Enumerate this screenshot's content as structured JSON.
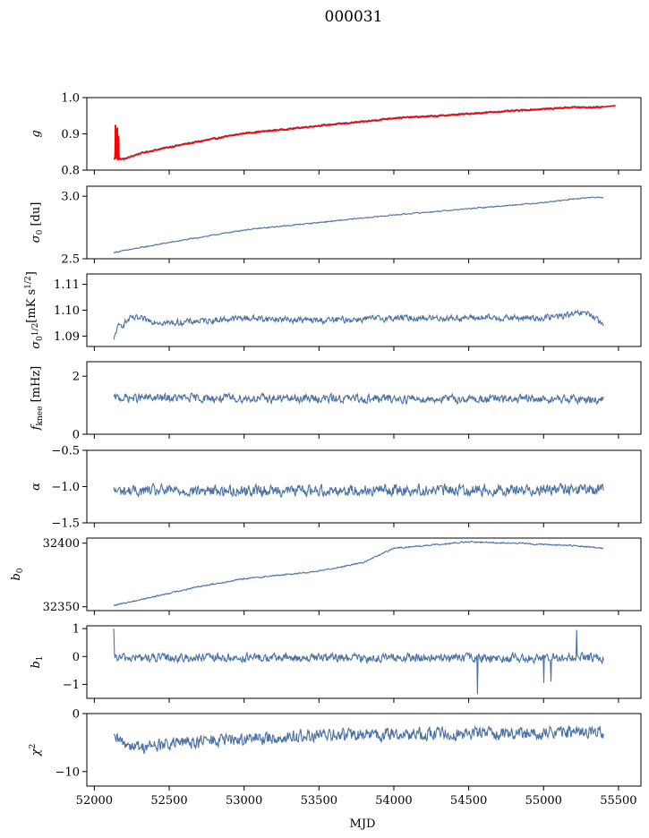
{
  "figure": {
    "title": "000031",
    "xlabel": "MJD"
  },
  "chart_data": {
    "type": "line",
    "title": "000031",
    "xlabel": "MJD",
    "xlim": [
      51950,
      55650
    ],
    "xticks": [
      52000,
      52500,
      53000,
      53500,
      54000,
      54500,
      55000,
      55500
    ],
    "x_start": 52130,
    "x_end": 55400,
    "grid": false,
    "series_color": "#4c72a3",
    "highlight_color": "#ff0000",
    "panels": [
      {
        "id": "g",
        "ylabel": "g",
        "ylim": [
          0.8,
          1.0
        ],
        "yticks": [
          0.8,
          0.9,
          1.0
        ],
        "ytick_labels": [
          "0.8",
          "0.9",
          "1.0"
        ],
        "trend": [
          [
            52130,
            0.833
          ],
          [
            52200,
            0.832
          ],
          [
            52300,
            0.847
          ],
          [
            52500,
            0.865
          ],
          [
            52800,
            0.888
          ],
          [
            53000,
            0.903
          ],
          [
            53300,
            0.915
          ],
          [
            53500,
            0.924
          ],
          [
            53800,
            0.935
          ],
          [
            54000,
            0.945
          ],
          [
            54300,
            0.951
          ],
          [
            54500,
            0.957
          ],
          [
            54800,
            0.965
          ],
          [
            55000,
            0.97
          ],
          [
            55200,
            0.975
          ],
          [
            55300,
            0.974
          ],
          [
            55480,
            0.978
          ]
        ],
        "noise": 0.0015,
        "red_overlay": true,
        "spikes": [
          [
            52140,
            0.925
          ],
          [
            52150,
            0.915
          ],
          [
            52160,
            0.895
          ]
        ]
      },
      {
        "id": "sigma0-du",
        "ylabel": "σ₀ [du]",
        "ylabel_main": "σ",
        "ylabel_sub": "0",
        "ylabel_rest": " [du]",
        "ylim": [
          2.5,
          3.08
        ],
        "yticks": [
          2.5,
          3.0
        ],
        "ytick_labels": [
          "2.5",
          "3.0"
        ],
        "trend": [
          [
            52130,
            2.55
          ],
          [
            52500,
            2.63
          ],
          [
            52800,
            2.69
          ],
          [
            53000,
            2.73
          ],
          [
            53500,
            2.79
          ],
          [
            54000,
            2.85
          ],
          [
            54500,
            2.9
          ],
          [
            55000,
            2.95
          ],
          [
            55300,
            2.99
          ],
          [
            55400,
            2.99
          ]
        ],
        "noise": 0.004
      },
      {
        "id": "sigma0-mks",
        "ylabel": "σ₀[mK s^1/2]",
        "ylabel_main": "σ",
        "ylabel_sub": "0",
        "ylabel_rest": "[mK s",
        "ylabel_sup": "1/2",
        "ylabel_end": "]",
        "ylim": [
          1.086,
          1.114
        ],
        "yticks": [
          1.09,
          1.1,
          1.11
        ],
        "ytick_labels": [
          "1.09",
          "1.10",
          "1.11"
        ],
        "trend": [
          [
            52130,
            1.088
          ],
          [
            52150,
            1.093
          ],
          [
            52250,
            1.097
          ],
          [
            52500,
            1.095
          ],
          [
            53000,
            1.097
          ],
          [
            53500,
            1.096
          ],
          [
            54000,
            1.097
          ],
          [
            54500,
            1.097
          ],
          [
            55000,
            1.097
          ],
          [
            55300,
            1.099
          ],
          [
            55400,
            1.094
          ]
        ],
        "noise": 0.0011
      },
      {
        "id": "fknee",
        "ylabel": "f_knee [mHz]",
        "ylabel_main": "f",
        "ylabel_sub": "knee",
        "ylabel_rest": " [mHz]",
        "ylim": [
          0,
          2.5
        ],
        "yticks": [
          0,
          2
        ],
        "ytick_labels": [
          "0",
          "2"
        ],
        "trend": [
          [
            52130,
            1.25
          ],
          [
            55400,
            1.2
          ]
        ],
        "noise": 0.13
      },
      {
        "id": "alpha",
        "ylabel": "α",
        "ylim": [
          -1.5,
          -0.5
        ],
        "yticks": [
          -1.5,
          -1.0,
          -0.5
        ],
        "ytick_labels": [
          "−1.5",
          "−1.0",
          "−0.5"
        ],
        "trend": [
          [
            52130,
            -1.06
          ],
          [
            55400,
            -1.04
          ]
        ],
        "noise": 0.07
      },
      {
        "id": "b0",
        "ylabel": "b₀",
        "ylabel_main": "b",
        "ylabel_sub": "0",
        "ylim": [
          32347,
          32404
        ],
        "yticks": [
          32350,
          32400
        ],
        "ytick_labels": [
          "32350",
          "32400"
        ],
        "trend": [
          [
            52130,
            32351
          ],
          [
            52400,
            32358
          ],
          [
            52700,
            32366
          ],
          [
            53000,
            32372
          ],
          [
            53500,
            32378
          ],
          [
            53800,
            32385
          ],
          [
            54000,
            32396
          ],
          [
            54500,
            32401
          ],
          [
            54800,
            32400
          ],
          [
            55000,
            32399
          ],
          [
            55200,
            32398
          ],
          [
            55400,
            32396
          ]
        ],
        "noise": 0.5
      },
      {
        "id": "b1",
        "ylabel": "b₁",
        "ylabel_main": "b",
        "ylabel_sub": "1",
        "ylim": [
          -1.5,
          1.1
        ],
        "yticks": [
          -1,
          0,
          1
        ],
        "ytick_labels": [
          "−1",
          "0",
          "1"
        ],
        "trend": [
          [
            52130,
            -0.05
          ],
          [
            55400,
            -0.05
          ]
        ],
        "noise": 0.14,
        "spikes": [
          [
            52130,
            1.0
          ],
          [
            54560,
            -1.35
          ],
          [
            55000,
            -0.95
          ],
          [
            55220,
            0.95
          ],
          [
            55050,
            -0.9
          ]
        ]
      },
      {
        "id": "chi2",
        "ylabel": "χ²",
        "ylabel_main": "χ",
        "ylabel_sup": "2",
        "ylim": [
          -12.5,
          0
        ],
        "yticks": [
          -10,
          0
        ],
        "ytick_labels": [
          "−10",
          "0"
        ],
        "trend": [
          [
            52130,
            -4.5
          ],
          [
            52300,
            -5.8
          ],
          [
            52700,
            -4.8
          ],
          [
            53500,
            -3.8
          ],
          [
            54500,
            -3.4
          ],
          [
            55400,
            -3.2
          ]
        ],
        "noise": 1.0
      }
    ]
  }
}
